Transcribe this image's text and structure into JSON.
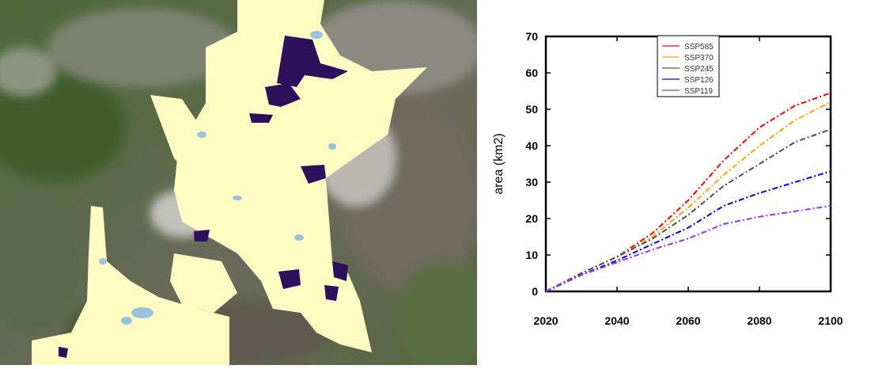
{
  "chart_data": {
    "type": "line",
    "title": "",
    "xlabel": "",
    "ylabel": "area (km2)",
    "xlim": [
      2020,
      2100
    ],
    "ylim": [
      0,
      70
    ],
    "x_ticks": [
      2020,
      2040,
      2060,
      2080,
      2100
    ],
    "y_ticks": [
      0,
      10,
      20,
      30,
      40,
      50,
      60,
      70
    ],
    "grid": false,
    "legend_position": "top-center",
    "x": [
      2020,
      2030,
      2040,
      2050,
      2060,
      2070,
      2080,
      2090,
      2100
    ],
    "series": [
      {
        "name": "SSP585",
        "color": "#ff0000",
        "values": [
          0,
          5,
          9.5,
          16,
          25,
          36,
          45,
          51,
          54.5
        ]
      },
      {
        "name": "SSP370",
        "color": "#ffa500",
        "values": [
          0,
          5,
          9.5,
          15,
          23,
          32,
          40,
          47,
          52
        ]
      },
      {
        "name": "SSP245",
        "color": "#505050",
        "values": [
          0,
          5,
          9.5,
          14.5,
          21,
          29,
          35,
          41,
          44.5
        ]
      },
      {
        "name": "SSP126",
        "color": "#0000ff",
        "values": [
          0,
          4.5,
          8.5,
          13,
          17.5,
          23.5,
          27,
          30,
          33
        ]
      },
      {
        "name": "SSP119",
        "color": "#9b30ff",
        "values": [
          0,
          4.5,
          8,
          11.5,
          14.5,
          18.5,
          20.5,
          22,
          23.5
        ]
      }
    ]
  }
}
